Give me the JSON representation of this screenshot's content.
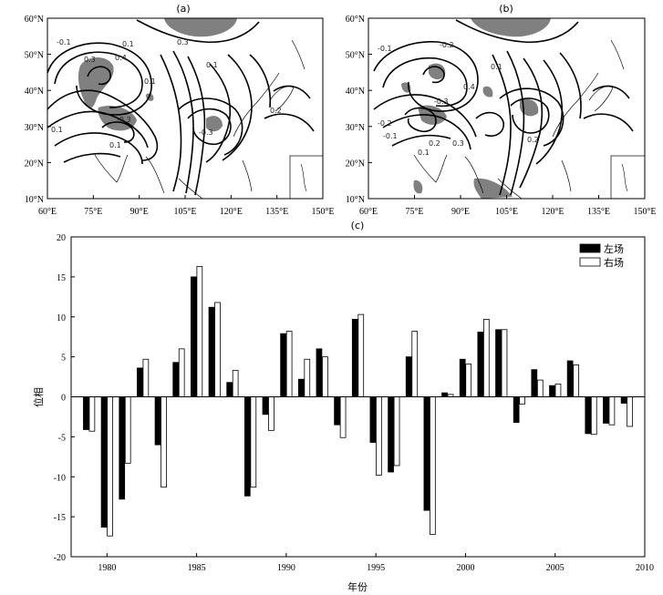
{
  "panels": [
    {
      "label": "(a)",
      "x_ticks": [
        "60°E",
        "75°E",
        "90°E",
        "105°E",
        "120°E",
        "135°E",
        "150°E"
      ],
      "y_ticks": [
        "10°N",
        "20°N",
        "30°N",
        "40°N",
        "50°N",
        "60°N"
      ],
      "contour_labels": [
        "-0.1",
        "0.3",
        "0.1",
        "0.4",
        "0.3",
        "0.1",
        "0.1",
        "-0.3",
        "0.1",
        "-0.3",
        "0.2",
        "0.1"
      ]
    },
    {
      "label": "(b)",
      "x_ticks": [
        "60°E",
        "75°E",
        "90°E",
        "105°E",
        "120°E",
        "135°E",
        "150°E"
      ],
      "y_ticks": [
        "10°N",
        "20°N",
        "30°N",
        "40°N",
        "50°N",
        "60°N"
      ],
      "contour_labels": [
        "-0.1",
        "-0.2",
        "0.1",
        "0.4",
        "-0.3",
        "-0.2",
        "0.2",
        "0.3",
        "-0.1",
        "0.1",
        "0.2"
      ]
    }
  ],
  "chart_data": {
    "type": "bar",
    "title": "(c)",
    "xlabel": "年份",
    "ylabel": "位相",
    "xlim": [
      1978,
      2010
    ],
    "ylim": [
      -20,
      20
    ],
    "x_ticks": [
      1980,
      1985,
      1990,
      1995,
      2000,
      2005,
      2010
    ],
    "y_ticks": [
      20,
      15,
      10,
      5,
      0,
      -5,
      -10,
      -15,
      -20
    ],
    "legend_position": "top-right",
    "years": [
      1979,
      1980,
      1981,
      1982,
      1983,
      1984,
      1985,
      1986,
      1987,
      1988,
      1989,
      1990,
      1991,
      1992,
      1993,
      1994,
      1995,
      1996,
      1997,
      1998,
      1999,
      2000,
      2001,
      2002,
      2003,
      2004,
      2005,
      2006,
      2007,
      2008,
      2009
    ],
    "series": [
      {
        "name": "左场",
        "color": "#000000",
        "values": [
          -4.1,
          -16.3,
          -12.8,
          3.6,
          -6.0,
          4.3,
          15.0,
          11.2,
          1.8,
          -12.4,
          -2.2,
          7.9,
          2.2,
          6.0,
          -3.5,
          9.7,
          -5.7,
          -9.4,
          5.0,
          -14.2,
          0.5,
          4.7,
          8.1,
          8.4,
          -3.2,
          3.4,
          1.4,
          4.5,
          -4.6,
          -3.3,
          -0.8
        ]
      },
      {
        "name": "右场",
        "color": "#ffffff",
        "values": [
          -4.3,
          -17.4,
          -8.3,
          4.7,
          -11.3,
          6.0,
          16.3,
          11.8,
          3.3,
          -11.3,
          -4.2,
          8.2,
          4.7,
          5.0,
          -5.1,
          10.3,
          -9.8,
          -8.6,
          8.2,
          -17.2,
          0.3,
          4.1,
          9.7,
          8.4,
          -0.9,
          2.1,
          1.6,
          4.0,
          -4.7,
          -3.5,
          -3.7
        ]
      }
    ]
  }
}
